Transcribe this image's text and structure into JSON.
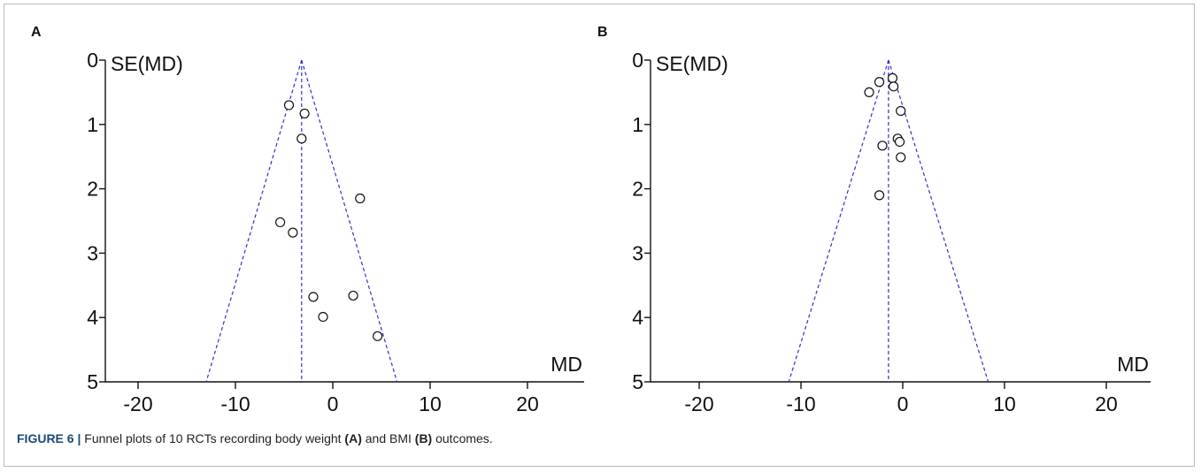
{
  "chart_data": [
    {
      "type": "scatter",
      "panel_label": "A",
      "title": "",
      "xlabel": "MD",
      "ylabel": "SE(MD)",
      "xlim": [
        -25,
        25
      ],
      "ylim": [
        5,
        0
      ],
      "y_inverted": true,
      "xticks": [
        "-20",
        "-10",
        "0",
        "10",
        "20"
      ],
      "yticks": [
        "0",
        "1",
        "2",
        "3",
        "4",
        "5"
      ],
      "pooled_estimate": -3.2,
      "funnel": {
        "apex": [
          -3.2,
          0
        ],
        "base_left": [
          -13.0,
          5
        ],
        "base_right": [
          6.6,
          5
        ]
      },
      "grid": false,
      "points": [
        {
          "x": -4.5,
          "y": 0.7
        },
        {
          "x": -2.9,
          "y": 0.83
        },
        {
          "x": -3.2,
          "y": 1.22
        },
        {
          "x": 2.8,
          "y": 2.15
        },
        {
          "x": -5.4,
          "y": 2.52
        },
        {
          "x": -4.1,
          "y": 2.68
        },
        {
          "x": -2.0,
          "y": 3.68
        },
        {
          "x": 2.1,
          "y": 3.66
        },
        {
          "x": -1.0,
          "y": 3.99
        },
        {
          "x": 4.6,
          "y": 4.29
        }
      ]
    },
    {
      "type": "scatter",
      "panel_label": "B",
      "title": "",
      "xlabel": "MD",
      "ylabel": "SE(MD)",
      "xlim": [
        -25,
        25
      ],
      "ylim": [
        5,
        0
      ],
      "y_inverted": true,
      "xticks": [
        "-20",
        "-10",
        "0",
        "10",
        "20"
      ],
      "yticks": [
        "0",
        "1",
        "2",
        "3",
        "4",
        "5"
      ],
      "pooled_estimate": -1.4,
      "funnel": {
        "apex": [
          -1.4,
          0
        ],
        "base_left": [
          -11.2,
          5
        ],
        "base_right": [
          8.4,
          5
        ]
      },
      "grid": false,
      "points": [
        {
          "x": -1.0,
          "y": 0.28
        },
        {
          "x": -2.3,
          "y": 0.34
        },
        {
          "x": -0.9,
          "y": 0.41
        },
        {
          "x": -3.3,
          "y": 0.5
        },
        {
          "x": -0.2,
          "y": 0.79
        },
        {
          "x": -0.5,
          "y": 1.22
        },
        {
          "x": -0.3,
          "y": 1.27
        },
        {
          "x": -2.0,
          "y": 1.33
        },
        {
          "x": -0.2,
          "y": 1.51
        },
        {
          "x": -2.3,
          "y": 2.1
        }
      ]
    }
  ],
  "caption": {
    "label": "FIGURE 6 |",
    "text_before": " Funnel plots of 10 RCTs recording body weight ",
    "mark_a": "(A)",
    "text_middle": " and BMI ",
    "mark_b": "(B)",
    "text_after": " outcomes."
  },
  "colors": {
    "funnel_line": "#2f2fd0",
    "axis": "#111111",
    "marker_edge": "#111111"
  }
}
